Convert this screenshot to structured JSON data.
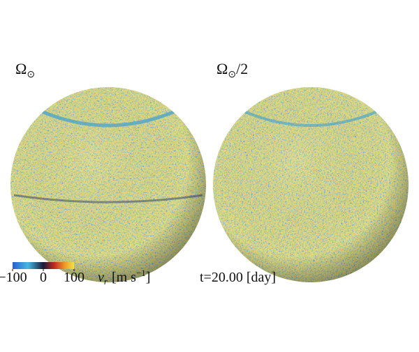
{
  "panels": [
    {
      "title": "Ω",
      "subscript": "⊙"
    },
    {
      "title": "Ω",
      "subscript": "⊙",
      "suffix": "/2"
    }
  ],
  "colorbar": {
    "lim": [
      -100,
      100
    ],
    "ticks": [
      {
        "value": -100,
        "label": "−100"
      },
      0,
      100
    ],
    "label": {
      "symbol": "v",
      "subscript": "r",
      "unit": "[m s",
      "exponent": "−1",
      "close": "]"
    }
  },
  "time": "t=20.00 [day]"
}
